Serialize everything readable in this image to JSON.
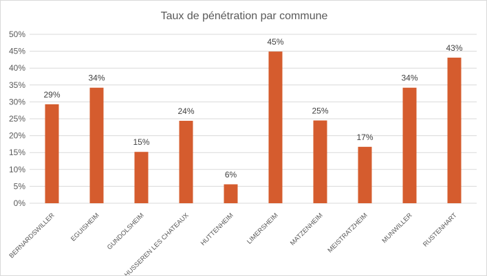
{
  "chart_data": {
    "type": "bar",
    "title": "Taux de pénétration par commune",
    "xlabel": "",
    "ylabel": "",
    "categories": [
      "BERNARDSWILLER",
      "EGUISHEIM",
      "GUNDOLSHEIM",
      "HUSSEREN LES CHATEAUX",
      "HUTTENHEIM",
      "LIMERSHEIM",
      "MATZENHEIM",
      "MEISTRATZHEIM",
      "MUNWILLER",
      "RUSTENHART"
    ],
    "values": [
      29.3,
      34.2,
      15.2,
      24.4,
      5.6,
      44.9,
      24.5,
      16.7,
      34.2,
      43.1
    ],
    "data_labels": [
      "29%",
      "34%",
      "15%",
      "24%",
      "6%",
      "45%",
      "25%",
      "17%",
      "34%",
      "43%"
    ],
    "ylim": [
      0,
      50
    ],
    "yticks": [
      0,
      5,
      10,
      15,
      20,
      25,
      30,
      35,
      40,
      45,
      50
    ],
    "ytick_labels": [
      "0%",
      "5%",
      "10%",
      "15%",
      "20%",
      "25%",
      "30%",
      "35%",
      "40%",
      "45%",
      "50%"
    ],
    "grid": true,
    "legend": "none",
    "bar_color": "#D55C2E",
    "grid_color": "#D9D9D9"
  }
}
